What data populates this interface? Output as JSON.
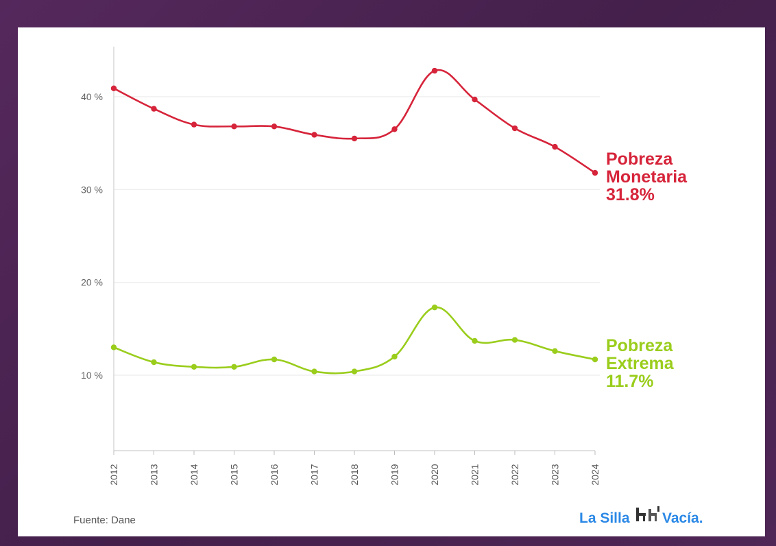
{
  "chart_data": {
    "type": "line",
    "x": [
      "2012",
      "2013",
      "2014",
      "2015",
      "2016",
      "2017",
      "2018",
      "2019",
      "2020",
      "2021",
      "2022",
      "2023",
      "2024"
    ],
    "ylim": [
      2,
      45
    ],
    "yticks": [
      10,
      20,
      30,
      40
    ],
    "ytick_labels": [
      "10 %",
      "20 %",
      "30 %",
      "40 %"
    ],
    "grid": true,
    "series": [
      {
        "name": "Pobreza Monetaria",
        "label_lines": [
          "Pobreza",
          "Monetaria",
          "31.8%"
        ],
        "color": "#d6243a",
        "values": [
          40.9,
          38.7,
          37.0,
          36.8,
          36.8,
          35.9,
          35.5,
          36.5,
          42.8,
          39.7,
          36.6,
          34.6,
          31.8
        ]
      },
      {
        "name": "Pobreza Extrema",
        "label_lines": [
          "Pobreza",
          "Extrema",
          "11.7%"
        ],
        "color": "#9acd1c",
        "values": [
          13.0,
          11.4,
          10.9,
          10.9,
          11.7,
          10.4,
          10.4,
          12.0,
          17.3,
          13.7,
          13.8,
          12.6,
          11.7
        ]
      }
    ]
  },
  "footer": {
    "source": "Fuente: Dane",
    "logo_left": "La Silla",
    "logo_right": "Vacía."
  }
}
